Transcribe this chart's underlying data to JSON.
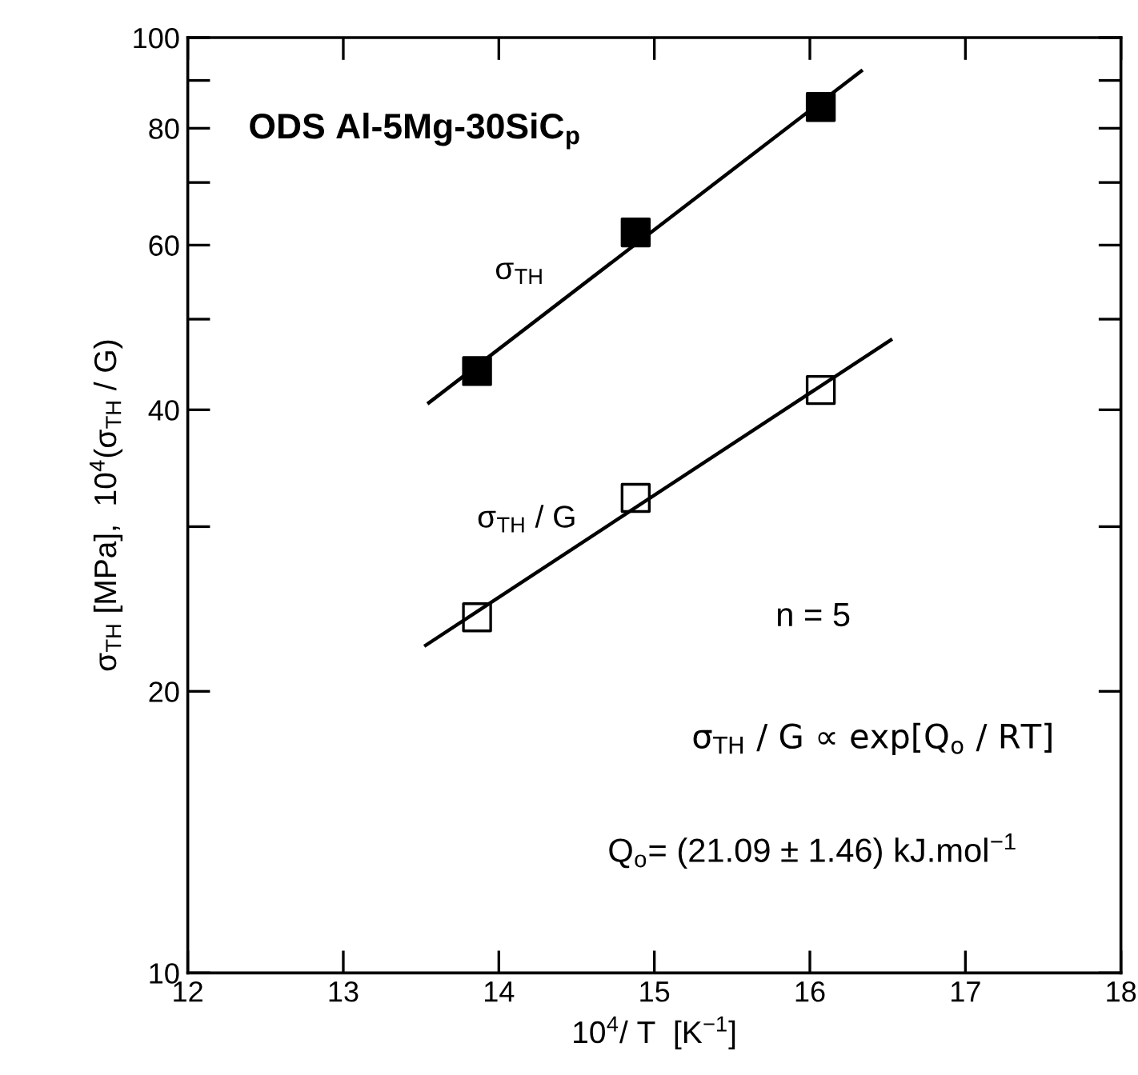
{
  "chart_data": {
    "type": "scatter",
    "xlabel": "10$^{4}$/ T  [K$^{−1}$]",
    "ylabel": "σ$_{TH}$ [MPa],  10$^{4}$(σ$_{TH}$ / G)",
    "log": "y",
    "xlim": [
      12,
      18
    ],
    "ylim": [
      10,
      100
    ],
    "xticks": [
      12,
      13,
      14,
      15,
      16,
      17,
      18
    ],
    "yticks": [
      10,
      20,
      {
        "value": 30,
        "label": null
      },
      40,
      {
        "value": 50,
        "label": null
      },
      60,
      {
        "value": 70,
        "label": null
      },
      80,
      {
        "value": 90,
        "label": null
      },
      100
    ],
    "grid": false,
    "legend": false,
    "series": [
      {
        "name": "σ$_{TH}$",
        "marker": "square",
        "color": "#000000",
        "x": [
          13.86,
          14.88,
          16.07
        ],
        "values": [
          44.0,
          61.9,
          84.3
        ]
      },
      {
        "name": "σ$_{TH}$ / G",
        "marker": "square",
        "color": "#000000",
        "x": [
          13.86,
          14.88,
          16.07
        ],
        "values": [
          24.0,
          32.2,
          42.0
        ]
      },
      {
        "type": "line",
        "marker": "none",
        "color": "#000000",
        "x": [
          13.55,
          16.33
        ],
        "values": [
          40.7,
          92.1
        ]
      },
      {
        "type": "line",
        "marker": "none",
        "color": "#000000",
        "x": [
          13.53,
          16.52
        ],
        "values": [
          22.4,
          47.5
        ]
      }
    ],
    "annotations": [
      "ODS Al-5Mg-30SiC$_{p}$",
      "n = 5",
      "σ$_{TH}$ / G ∝ exp[Q$_{o}$ / RT]",
      "Q$_{o}$= (21.09 ± 1.46) kJ.mol$^{−1}$"
    ]
  }
}
